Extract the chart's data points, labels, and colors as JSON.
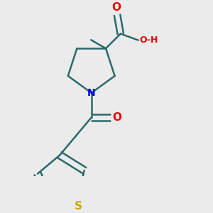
{
  "background_color": "#ebebeb",
  "bond_color": "#2a6a6a",
  "N_color": "#0000ee",
  "O_color": "#ee0000",
  "S_color": "#ccaa00",
  "line_width": 1.8,
  "figsize": [
    3.0,
    3.0
  ],
  "dpi": 100,
  "xlim": [
    0.05,
    0.95
  ],
  "ylim": [
    0.05,
    0.95
  ]
}
